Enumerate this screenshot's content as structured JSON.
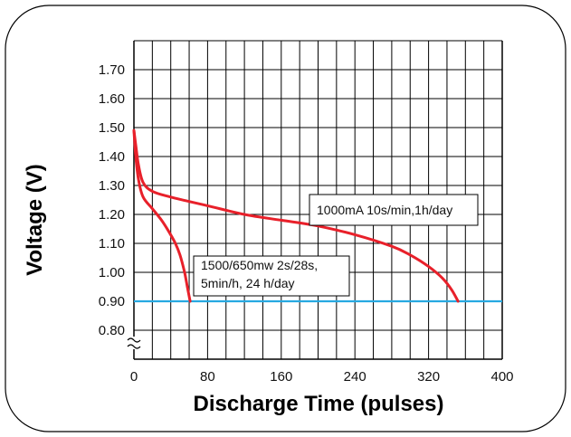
{
  "chart_data": {
    "type": "line",
    "xlabel": "Discharge Time (pulses)",
    "ylabel": "Voltage (V)",
    "xlim": [
      0,
      400
    ],
    "ylim": [
      0.8,
      1.7
    ],
    "y_axis_break": true,
    "grid": true,
    "x_ticks": [
      "0",
      "80",
      "160",
      "240",
      "320",
      "400"
    ],
    "y_ticks": [
      "0.80",
      "0.90",
      "1.00",
      "1.10",
      "1.20",
      "1.30",
      "1.40",
      "1.50",
      "1.60",
      "1.70"
    ],
    "colors": {
      "series": "#e8202a",
      "cutoff": "#27a9e1",
      "grid": "#000000"
    },
    "series": [
      {
        "label": "1000mA 10s/min,1h/day",
        "x": [
          0,
          2,
          5,
          10,
          20,
          40,
          80,
          120,
          160,
          200,
          240,
          280,
          300,
          320,
          335,
          345,
          352
        ],
        "y": [
          1.49,
          1.44,
          1.37,
          1.31,
          1.28,
          1.26,
          1.23,
          1.2,
          1.18,
          1.16,
          1.13,
          1.09,
          1.06,
          1.02,
          0.98,
          0.94,
          0.9
        ]
      },
      {
        "label": "1500/650mw 2s/28s, 5min/h, 24 h/day",
        "x": [
          0,
          2,
          5,
          10,
          20,
          30,
          38,
          45,
          50,
          55,
          58,
          61
        ],
        "y": [
          1.49,
          1.4,
          1.32,
          1.26,
          1.22,
          1.18,
          1.14,
          1.1,
          1.06,
          1.0,
          0.95,
          0.9
        ]
      }
    ],
    "reference_line": {
      "y": 0.9
    },
    "annotations": [
      {
        "lines": [
          "1000mA 10s/min,1h/day"
        ]
      },
      {
        "lines": [
          "1500/650mw 2s/28s,",
          "5min/h, 24 h/day"
        ]
      }
    ]
  }
}
